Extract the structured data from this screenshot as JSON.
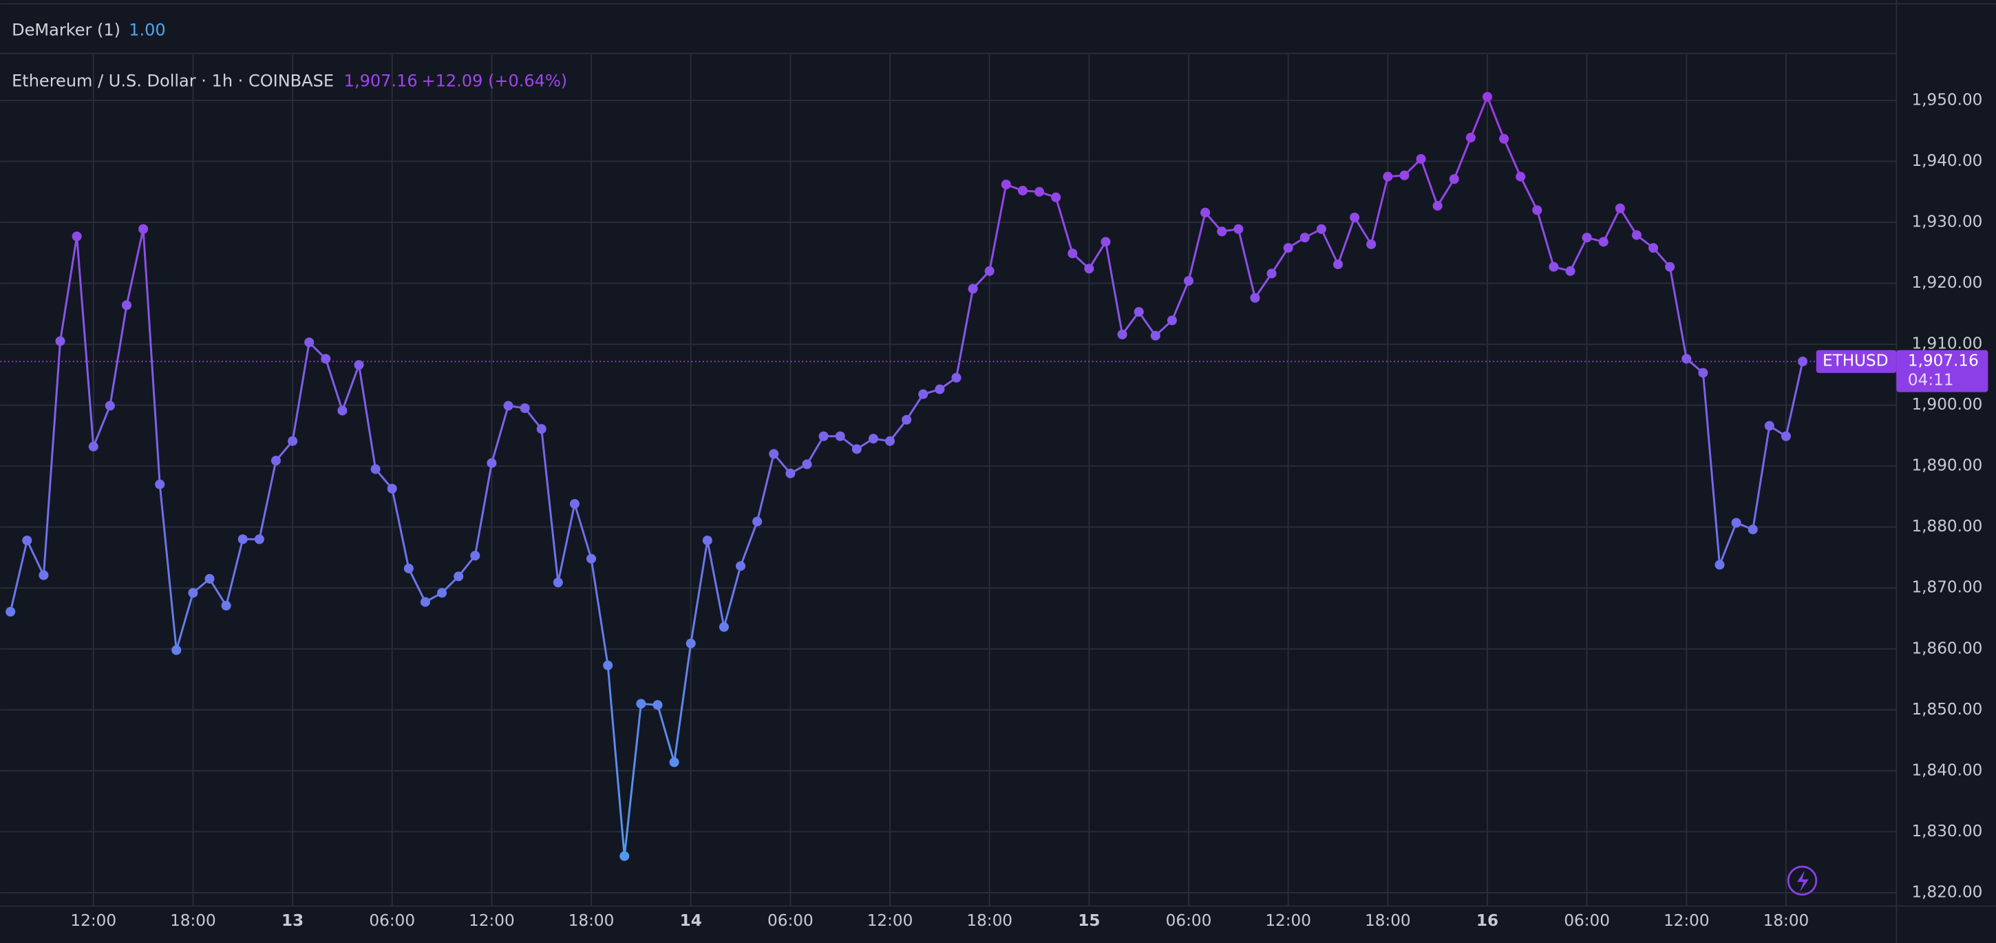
{
  "chart_data": {
    "type": "line",
    "indicator": {
      "name": "DeMarker (1)",
      "value": "1.00"
    },
    "title": "Ethereum / U.S. Dollar · 1h · COINBASE",
    "price": "1,907.16",
    "change": "+12.09 (+0.64%)",
    "price_tag": {
      "symbol": "ETHUSD",
      "price": "1,907.16",
      "countdown": "04:11"
    },
    "x": [
      0,
      1,
      2,
      3,
      4,
      5,
      6,
      7,
      8,
      9,
      10,
      11,
      12,
      13,
      14,
      15,
      16,
      17,
      18,
      19,
      20,
      21,
      22,
      23,
      24,
      25,
      26,
      27,
      28,
      29,
      30,
      31,
      32,
      33,
      34,
      35,
      36,
      37,
      38,
      39,
      40,
      41,
      42,
      43,
      44,
      45,
      46,
      47,
      48,
      49,
      50,
      51,
      52,
      53,
      54,
      55,
      56,
      57,
      58,
      59,
      60,
      61,
      62,
      63,
      64,
      65,
      66,
      67,
      68,
      69,
      70,
      71,
      72,
      73,
      74,
      75,
      76,
      77,
      78,
      79,
      80,
      81,
      82,
      83,
      84,
      85,
      86,
      87,
      88,
      89,
      90,
      91,
      92,
      93,
      94,
      95,
      96,
      97,
      98,
      99,
      100,
      101,
      102,
      103,
      104,
      105,
      106,
      107,
      108
    ],
    "series": [
      {
        "name": "ETHUSD",
        "values": [
          1866.1,
          1877.8,
          1872.1,
          1910.5,
          1927.7,
          1893.2,
          1899.9,
          1916.4,
          1928.9,
          1887.0,
          1859.8,
          1869.2,
          1871.5,
          1867.1,
          1878.0,
          1878.0,
          1890.9,
          1894.1,
          1910.3,
          1907.6,
          1899.1,
          1906.6,
          1889.5,
          1886.3,
          1873.2,
          1867.7,
          1869.2,
          1871.9,
          1875.3,
          1890.5,
          1899.9,
          1899.5,
          1896.1,
          1870.9,
          1883.8,
          1874.8,
          1857.3,
          1826.0,
          1851.0,
          1850.8,
          1841.4,
          1860.9,
          1877.8,
          1863.6,
          1873.6,
          1880.9,
          1892.0,
          1888.8,
          1890.3,
          1894.9,
          1894.9,
          1892.8,
          1894.5,
          1894.1,
          1897.6,
          1901.8,
          1902.6,
          1904.5,
          1919.1,
          1922.0,
          1936.2,
          1935.2,
          1935.0,
          1934.1,
          1924.9,
          1922.4,
          1926.8,
          1911.6,
          1915.3,
          1911.4,
          1913.9,
          1920.4,
          1931.6,
          1928.5,
          1928.9,
          1917.6,
          1921.6,
          1925.8,
          1927.5,
          1928.9,
          1923.1,
          1930.8,
          1926.4,
          1937.5,
          1937.7,
          1940.4,
          1932.7,
          1937.1,
          1943.9,
          1950.6,
          1943.7,
          1937.5,
          1932.0,
          1922.7,
          1922.0,
          1927.5,
          1926.8,
          1932.3,
          1927.9,
          1925.8,
          1922.7,
          1907.6,
          1905.3,
          1873.8,
          1880.7,
          1879.6,
          1896.6,
          1894.9,
          1907.16
        ]
      }
    ],
    "color_scale": {
      "low": "#4aa0f0",
      "high": "#a234e6"
    },
    "xlim": [
      -0.61,
      113.65
    ],
    "xticks": [
      {
        "value": 5,
        "label": "12:00"
      },
      {
        "value": 11,
        "label": "18:00"
      },
      {
        "value": 17,
        "label": "13"
      },
      {
        "value": 23,
        "label": "06:00"
      },
      {
        "value": 29,
        "label": "12:00"
      },
      {
        "value": 35,
        "label": "18:00"
      },
      {
        "value": 41,
        "label": "14"
      },
      {
        "value": 47,
        "label": "06:00"
      },
      {
        "value": 53,
        "label": "12:00"
      },
      {
        "value": 59,
        "label": "18:00"
      },
      {
        "value": 65,
        "label": "15"
      },
      {
        "value": 71,
        "label": "06:00"
      },
      {
        "value": 77,
        "label": "12:00"
      },
      {
        "value": 83,
        "label": "18:00"
      },
      {
        "value": 89,
        "label": "16"
      },
      {
        "value": 95,
        "label": "06:00"
      },
      {
        "value": 101,
        "label": "12:00"
      },
      {
        "value": 107,
        "label": "18:00"
      }
    ],
    "ylim": [
      1817.8,
      1957.5
    ],
    "yticks": [
      {
        "value": 1820,
        "label": "1,820.00"
      },
      {
        "value": 1830,
        "label": "1,830.00"
      },
      {
        "value": 1840,
        "label": "1,840.00"
      },
      {
        "value": 1850,
        "label": "1,850.00"
      },
      {
        "value": 1860,
        "label": "1,860.00"
      },
      {
        "value": 1870,
        "label": "1,870.00"
      },
      {
        "value": 1880,
        "label": "1,880.00"
      },
      {
        "value": 1890,
        "label": "1,890.00"
      },
      {
        "value": 1900,
        "label": "1,900.00"
      },
      {
        "value": 1910,
        "label": "1,910.00"
      },
      {
        "value": 1920,
        "label": "1,920.00"
      },
      {
        "value": 1930,
        "label": "1,930.00"
      },
      {
        "value": 1940,
        "label": "1,940.00"
      },
      {
        "value": 1950,
        "label": "1,950.00"
      }
    ],
    "grid": true
  }
}
